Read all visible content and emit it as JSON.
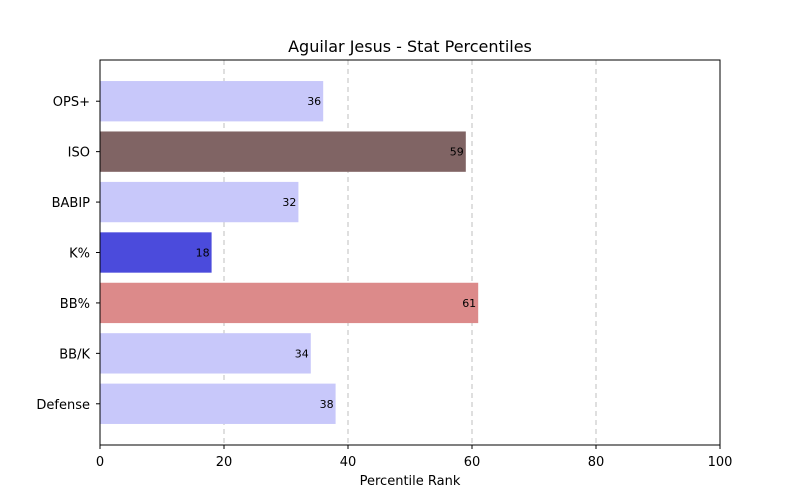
{
  "chart_data": {
    "type": "bar",
    "orientation": "horizontal",
    "title": "Aguilar Jesus - Stat Percentiles",
    "xlabel": "Percentile Rank",
    "ylabel": "",
    "xlim": [
      0,
      100
    ],
    "xticks": [
      0,
      20,
      40,
      60,
      80,
      100
    ],
    "grid": "vertical dashed",
    "categories": [
      "OPS+",
      "ISO",
      "BABIP",
      "K%",
      "BB%",
      "BB/K",
      "Defense"
    ],
    "values": [
      36,
      59,
      32,
      18,
      61,
      34,
      38
    ],
    "colors": [
      "#c8c8fa",
      "#806464",
      "#c8c8fa",
      "#4b4bdc",
      "#dc8a8a",
      "#c8c8fa",
      "#c8c8fa"
    ]
  }
}
